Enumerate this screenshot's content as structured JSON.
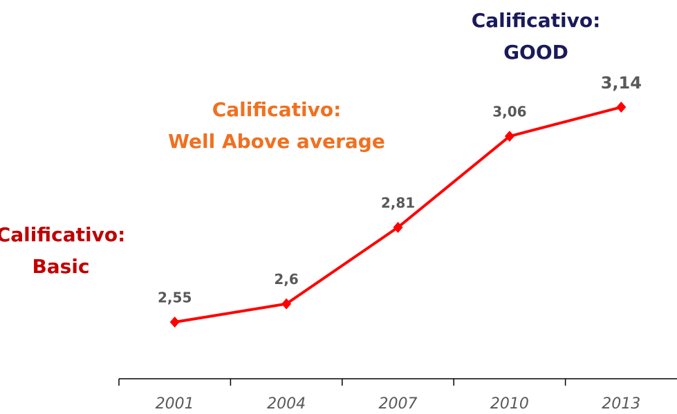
{
  "chart_data": {
    "type": "line",
    "categories": [
      "2001",
      "2004",
      "2007",
      "2010",
      "2013"
    ],
    "series": [
      {
        "color": "#ff0000",
        "values": [
          2.55,
          2.6,
          2.81,
          3.06,
          3.14
        ],
        "value_labels": [
          "2,55",
          "2,6",
          "2,81",
          "3,06",
          "3,14"
        ]
      }
    ],
    "annotations": [
      {
        "lines": [
          "Calificativo:",
          "Basic"
        ],
        "color": "#c00000"
      },
      {
        "lines": [
          "Calificativo:",
          "Well Above average"
        ],
        "color": "#f07020"
      },
      {
        "lines": [
          "Calificativo:",
          "GOOD"
        ],
        "color": "#1a1a5a"
      }
    ]
  }
}
